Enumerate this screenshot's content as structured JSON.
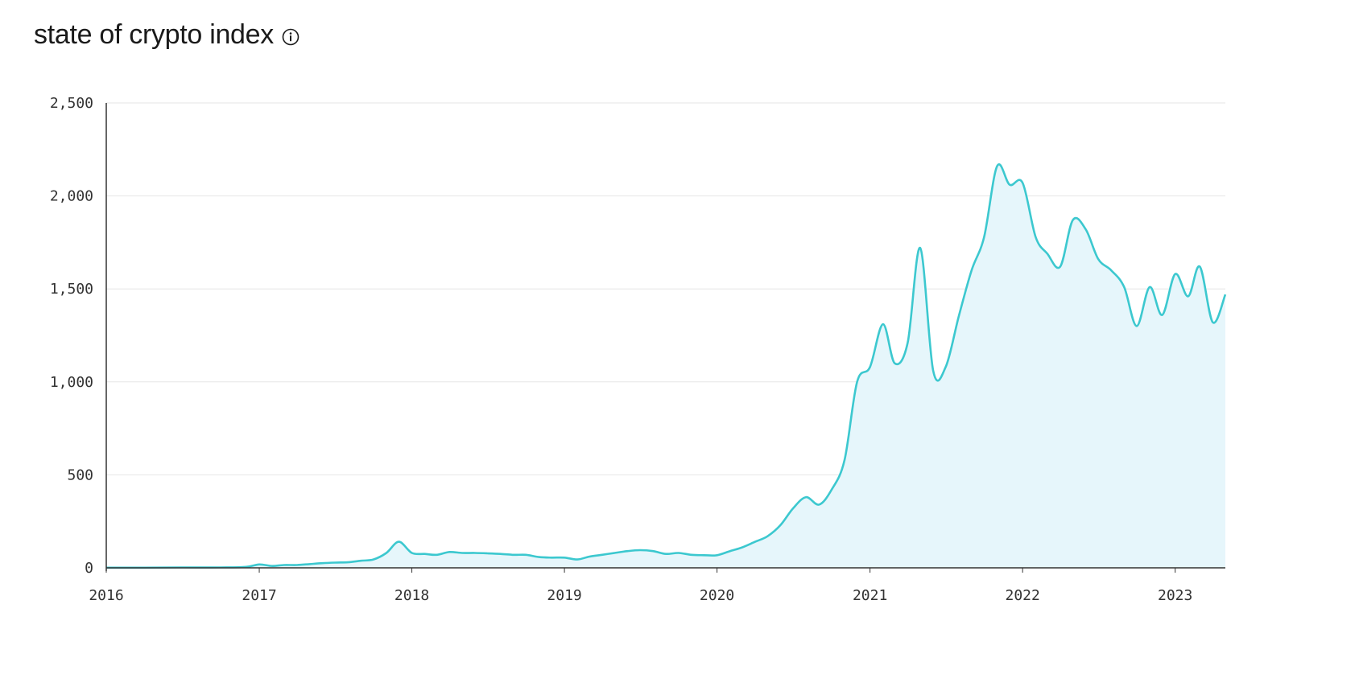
{
  "header": {
    "title": "state of crypto index",
    "info_icon": "info-circle-icon"
  },
  "colors": {
    "line": "#3cc8cf",
    "area": "#e6f6fb",
    "grid": "#e6e6e6",
    "axis": "#333333"
  },
  "chart_data": {
    "type": "area",
    "title": "state of crypto index",
    "xlabel": "",
    "ylabel": "",
    "ylim": [
      0,
      2500
    ],
    "xlim": [
      "2016-01-01",
      "2023-05-01"
    ],
    "yticks": [
      0,
      500,
      1000,
      1500,
      2000,
      2500
    ],
    "ytick_labels": [
      "0",
      "500",
      "1,000",
      "1,500",
      "2,000",
      "2,500"
    ],
    "xticks": [
      "2016",
      "2017",
      "2018",
      "2019",
      "2020",
      "2021",
      "2022",
      "2023"
    ],
    "grid": true,
    "legend": "none",
    "series": [
      {
        "x": [
          "2016-01-01",
          "2016-04-01",
          "2016-07-01",
          "2016-10-01",
          "2016-12-01",
          "2017-01-01",
          "2017-02-01",
          "2017-03-01",
          "2017-04-01",
          "2017-05-01",
          "2017-06-01",
          "2017-07-01",
          "2017-08-01",
          "2017-09-01",
          "2017-10-01",
          "2017-11-01",
          "2017-12-01",
          "2018-01-01",
          "2018-02-01",
          "2018-03-01",
          "2018-04-01",
          "2018-05-01",
          "2018-06-01",
          "2018-07-01",
          "2018-08-01",
          "2018-09-01",
          "2018-10-01",
          "2018-11-01",
          "2018-12-01",
          "2019-01-01",
          "2019-02-01",
          "2019-03-01",
          "2019-04-01",
          "2019-05-01",
          "2019-06-01",
          "2019-07-01",
          "2019-08-01",
          "2019-09-01",
          "2019-10-01",
          "2019-11-01",
          "2019-12-01",
          "2020-01-01",
          "2020-02-01",
          "2020-03-01",
          "2020-04-01",
          "2020-05-01",
          "2020-06-01",
          "2020-07-01",
          "2020-08-01",
          "2020-09-01",
          "2020-10-01",
          "2020-11-01",
          "2020-12-01",
          "2021-01-01",
          "2021-02-01",
          "2021-03-01",
          "2021-04-01",
          "2021-05-01",
          "2021-06-01",
          "2021-07-01",
          "2021-08-01",
          "2021-09-01",
          "2021-10-01",
          "2021-11-01",
          "2021-12-01",
          "2022-01-01",
          "2022-02-01",
          "2022-03-01",
          "2022-04-01",
          "2022-05-01",
          "2022-06-01",
          "2022-07-01",
          "2022-08-01",
          "2022-09-01",
          "2022-10-01",
          "2022-11-01",
          "2022-12-01",
          "2023-01-01",
          "2023-02-01",
          "2023-03-01",
          "2023-04-01",
          "2023-05-01"
        ],
        "values": [
          1,
          1,
          2,
          2,
          5,
          18,
          10,
          15,
          15,
          20,
          25,
          28,
          30,
          38,
          45,
          80,
          140,
          80,
          75,
          70,
          85,
          80,
          80,
          78,
          75,
          70,
          70,
          58,
          55,
          55,
          45,
          60,
          70,
          80,
          90,
          95,
          90,
          75,
          80,
          70,
          68,
          68,
          90,
          110,
          140,
          170,
          230,
          320,
          380,
          340,
          420,
          580,
          1000,
          1080,
          1310,
          1100,
          1210,
          1720,
          1060,
          1080,
          1350,
          1600,
          1780,
          2160,
          2060,
          2070,
          1780,
          1690,
          1620,
          1870,
          1820,
          1660,
          1600,
          1510,
          1300,
          1510,
          1360,
          1580,
          1460,
          1620,
          1320,
          1470
        ]
      }
    ]
  }
}
